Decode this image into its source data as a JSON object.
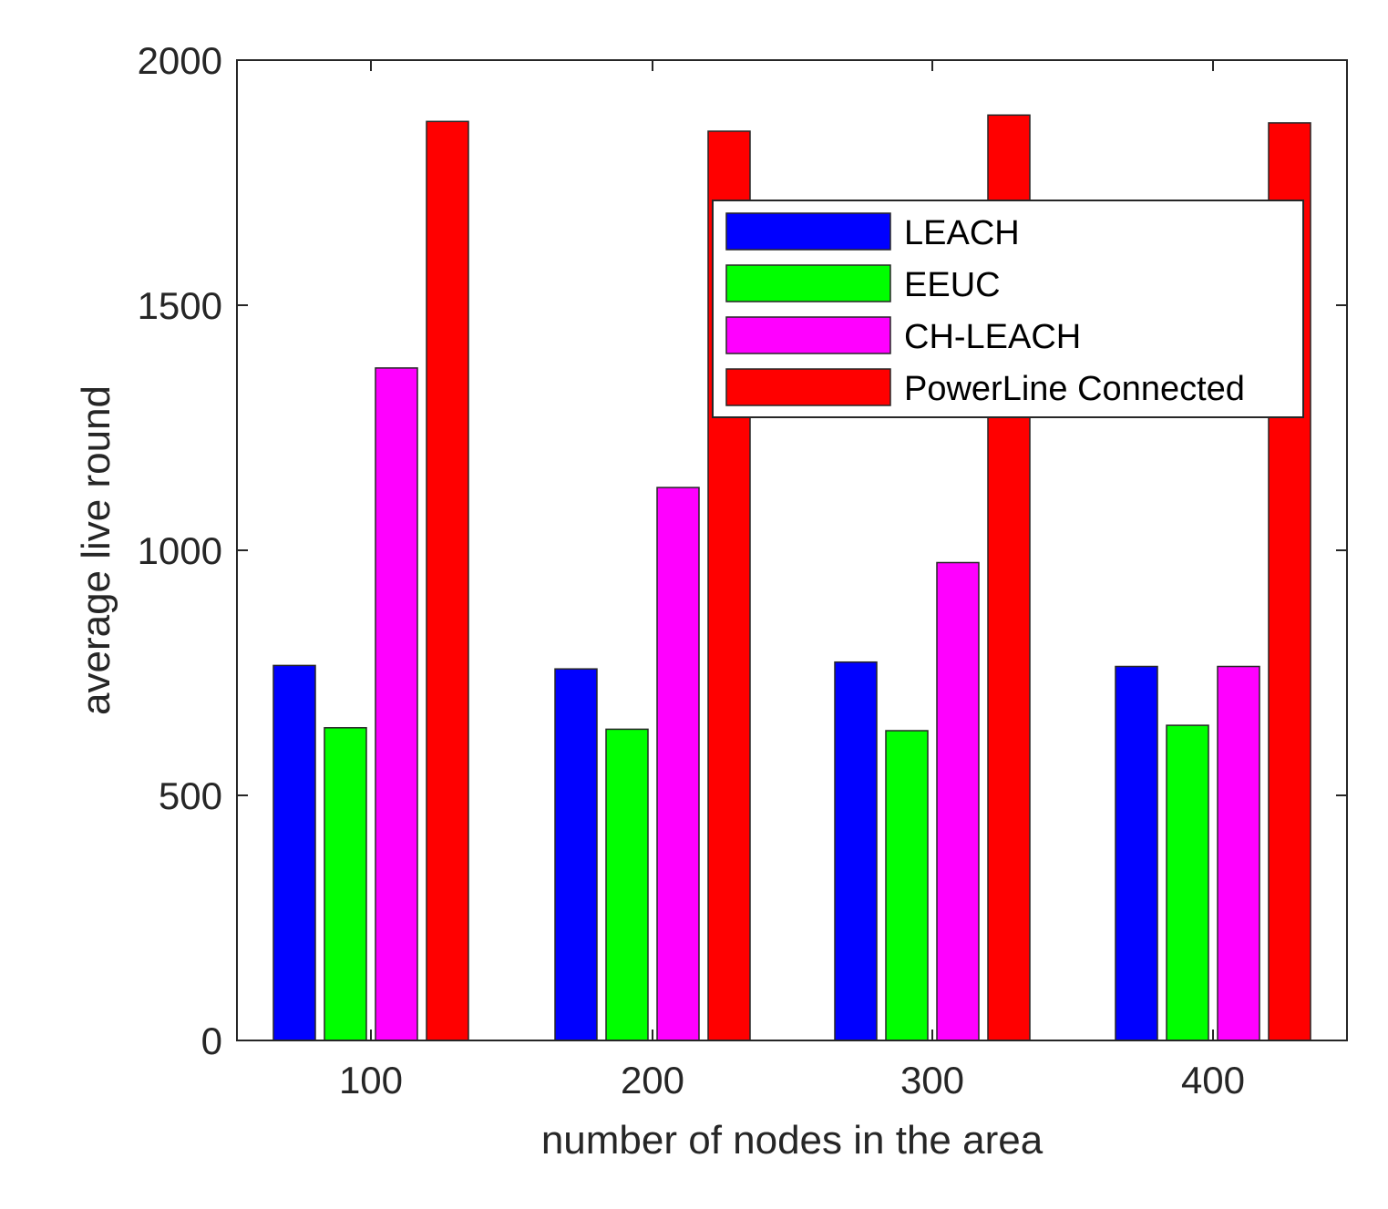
{
  "chart_data": {
    "type": "bar",
    "title": "",
    "xlabel": "number of nodes in the area",
    "ylabel": "average live round",
    "categories": [
      "100",
      "200",
      "300",
      "400"
    ],
    "ylim": [
      0,
      2000
    ],
    "yticks": [
      "0",
      "500",
      "1000",
      "1500",
      "2000"
    ],
    "grid": false,
    "legend_position": "top-right",
    "series": [
      {
        "name": "LEACH",
        "color": "#0000ff",
        "values": [
          765,
          758,
          772,
          763
        ]
      },
      {
        "name": "EEUC",
        "color": "#00ff00",
        "values": [
          638,
          635,
          632,
          643
        ]
      },
      {
        "name": "CH-LEACH",
        "color": "#ff00ff",
        "values": [
          1372,
          1128,
          975,
          763
        ]
      },
      {
        "name": "PowerLine Connected",
        "color": "#ff0000",
        "values": [
          1875,
          1855,
          1888,
          1872
        ]
      }
    ]
  }
}
